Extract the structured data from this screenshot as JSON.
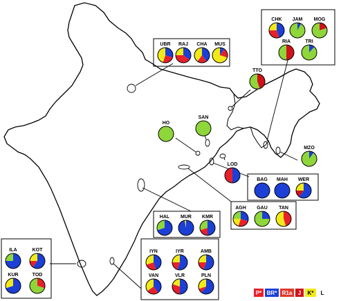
{
  "colors": {
    "P": "#e8202a",
    "BR": "#1c3fd6",
    "R1a": "#e03a2a",
    "J": "#d0121b",
    "K": "#f2ea18",
    "L": "#8fd63a",
    "outline": "#000000",
    "background": "#ffffff"
  },
  "legend": [
    {
      "key": "P",
      "label": "P*",
      "bg": "#e8202a",
      "fg": "#ffffff"
    },
    {
      "key": "BR",
      "label": "BR*",
      "bg": "#1c3fd6",
      "fg": "#ffffff"
    },
    {
      "key": "R1a",
      "label": "R1a",
      "bg": "#e03a2a",
      "fg": "#ffffff"
    },
    {
      "key": "J",
      "label": "J",
      "bg": "#d0121b",
      "fg": "#ffffff"
    },
    {
      "key": "K",
      "label": "K*",
      "bg": "#f2ea18",
      "fg": "#000000"
    },
    {
      "key": "L",
      "label": "L",
      "bg": "#ffffff",
      "fg": "#000000"
    }
  ],
  "populations": [
    {
      "code": "UBR",
      "group": "north",
      "composition": {
        "K": 0.45,
        "BR": 0.3,
        "P": 0.25
      }
    },
    {
      "code": "RAJ",
      "group": "north",
      "composition": {
        "P": 0.4,
        "BR": 0.35,
        "K": 0.25
      }
    },
    {
      "code": "CHA",
      "group": "north",
      "composition": {
        "K": 0.4,
        "BR": 0.4,
        "P": 0.2
      }
    },
    {
      "code": "MUS",
      "group": "north",
      "composition": {
        "K": 0.7,
        "P": 0.2,
        "BR": 0.1
      }
    },
    {
      "code": "CHK",
      "group": "northeast",
      "composition": {
        "K": 0.25,
        "P": 0.3,
        "BR": 0.45
      }
    },
    {
      "code": "JAM",
      "group": "northeast",
      "composition": {
        "L": 0.92,
        "BR": 0.08
      }
    },
    {
      "code": "MOG",
      "group": "northeast",
      "composition": {
        "L": 0.8,
        "J": 0.2
      }
    },
    {
      "code": "RIA",
      "group": "northeast",
      "composition": {
        "L": 0.5,
        "J": 0.5
      }
    },
    {
      "code": "TRI",
      "group": "northeast",
      "composition": {
        "L": 0.88,
        "BR": 0.12
      }
    },
    {
      "code": "TTO",
      "group": "northeast",
      "composition": {
        "L": 0.55,
        "J": 0.45
      }
    },
    {
      "code": "HO",
      "group": "east",
      "composition": {
        "L": 1.0
      }
    },
    {
      "code": "SAN",
      "group": "east",
      "composition": {
        "L": 1.0
      }
    },
    {
      "code": "MZO",
      "group": "east",
      "composition": {
        "L": 0.9,
        "BR": 0.1
      }
    },
    {
      "code": "LOD",
      "group": "east",
      "composition": {
        "BR": 0.5,
        "P": 0.5
      }
    },
    {
      "code": "BAG",
      "group": "east",
      "composition": {
        "BR": 1.0
      }
    },
    {
      "code": "MAH",
      "group": "east",
      "composition": {
        "BR": 1.0
      }
    },
    {
      "code": "WER",
      "group": "east",
      "composition": {
        "BR": 0.6,
        "K": 0.25,
        "J": 0.15
      }
    },
    {
      "code": "AGH",
      "group": "east",
      "composition": {
        "BR": 0.3,
        "P": 0.25,
        "L": 0.25,
        "K": 0.2
      }
    },
    {
      "code": "GAU",
      "group": "east",
      "composition": {
        "L": 0.75,
        "BR": 0.25
      }
    },
    {
      "code": "TAN",
      "group": "east",
      "composition": {
        "K": 0.55,
        "P": 0.45
      }
    },
    {
      "code": "HAL",
      "group": "central",
      "composition": {
        "BR": 0.7,
        "L": 0.3
      }
    },
    {
      "code": "MUR",
      "group": "central",
      "composition": {
        "BR": 0.97,
        "K": 0.03
      }
    },
    {
      "code": "KMR",
      "group": "central",
      "composition": {
        "BR": 0.5,
        "P": 0.2,
        "L": 0.3
      }
    },
    {
      "code": "ILA",
      "group": "south-west",
      "composition": {
        "BR": 0.75,
        "L": 0.25
      }
    },
    {
      "code": "KOT",
      "group": "south-west",
      "composition": {
        "BR": 0.6,
        "K": 0.25,
        "P": 0.15
      }
    },
    {
      "code": "KUR",
      "group": "south-west",
      "composition": {
        "BR": 0.7,
        "K": 0.3
      }
    },
    {
      "code": "TOD",
      "group": "south-west",
      "composition": {
        "L": 0.7,
        "P": 0.3
      }
    },
    {
      "code": "IYN",
      "group": "south",
      "composition": {
        "BR": 0.45,
        "K": 0.3,
        "P": 0.25
      }
    },
    {
      "code": "IYR",
      "group": "south",
      "composition": {
        "BR": 0.55,
        "K": 0.25,
        "P": 0.2
      }
    },
    {
      "code": "AMB",
      "group": "south",
      "composition": {
        "BR": 0.55,
        "K": 0.25,
        "P": 0.2
      }
    },
    {
      "code": "VAN",
      "group": "south",
      "composition": {
        "K": 0.35,
        "BR": 0.4,
        "P": 0.25
      }
    },
    {
      "code": "VLR",
      "group": "south",
      "composition": {
        "BR": 0.5,
        "K": 0.2,
        "P": 0.3
      }
    },
    {
      "code": "PLN",
      "group": "south",
      "composition": {
        "BR": 0.6,
        "K": 0.3,
        "P": 0.1
      }
    }
  ]
}
